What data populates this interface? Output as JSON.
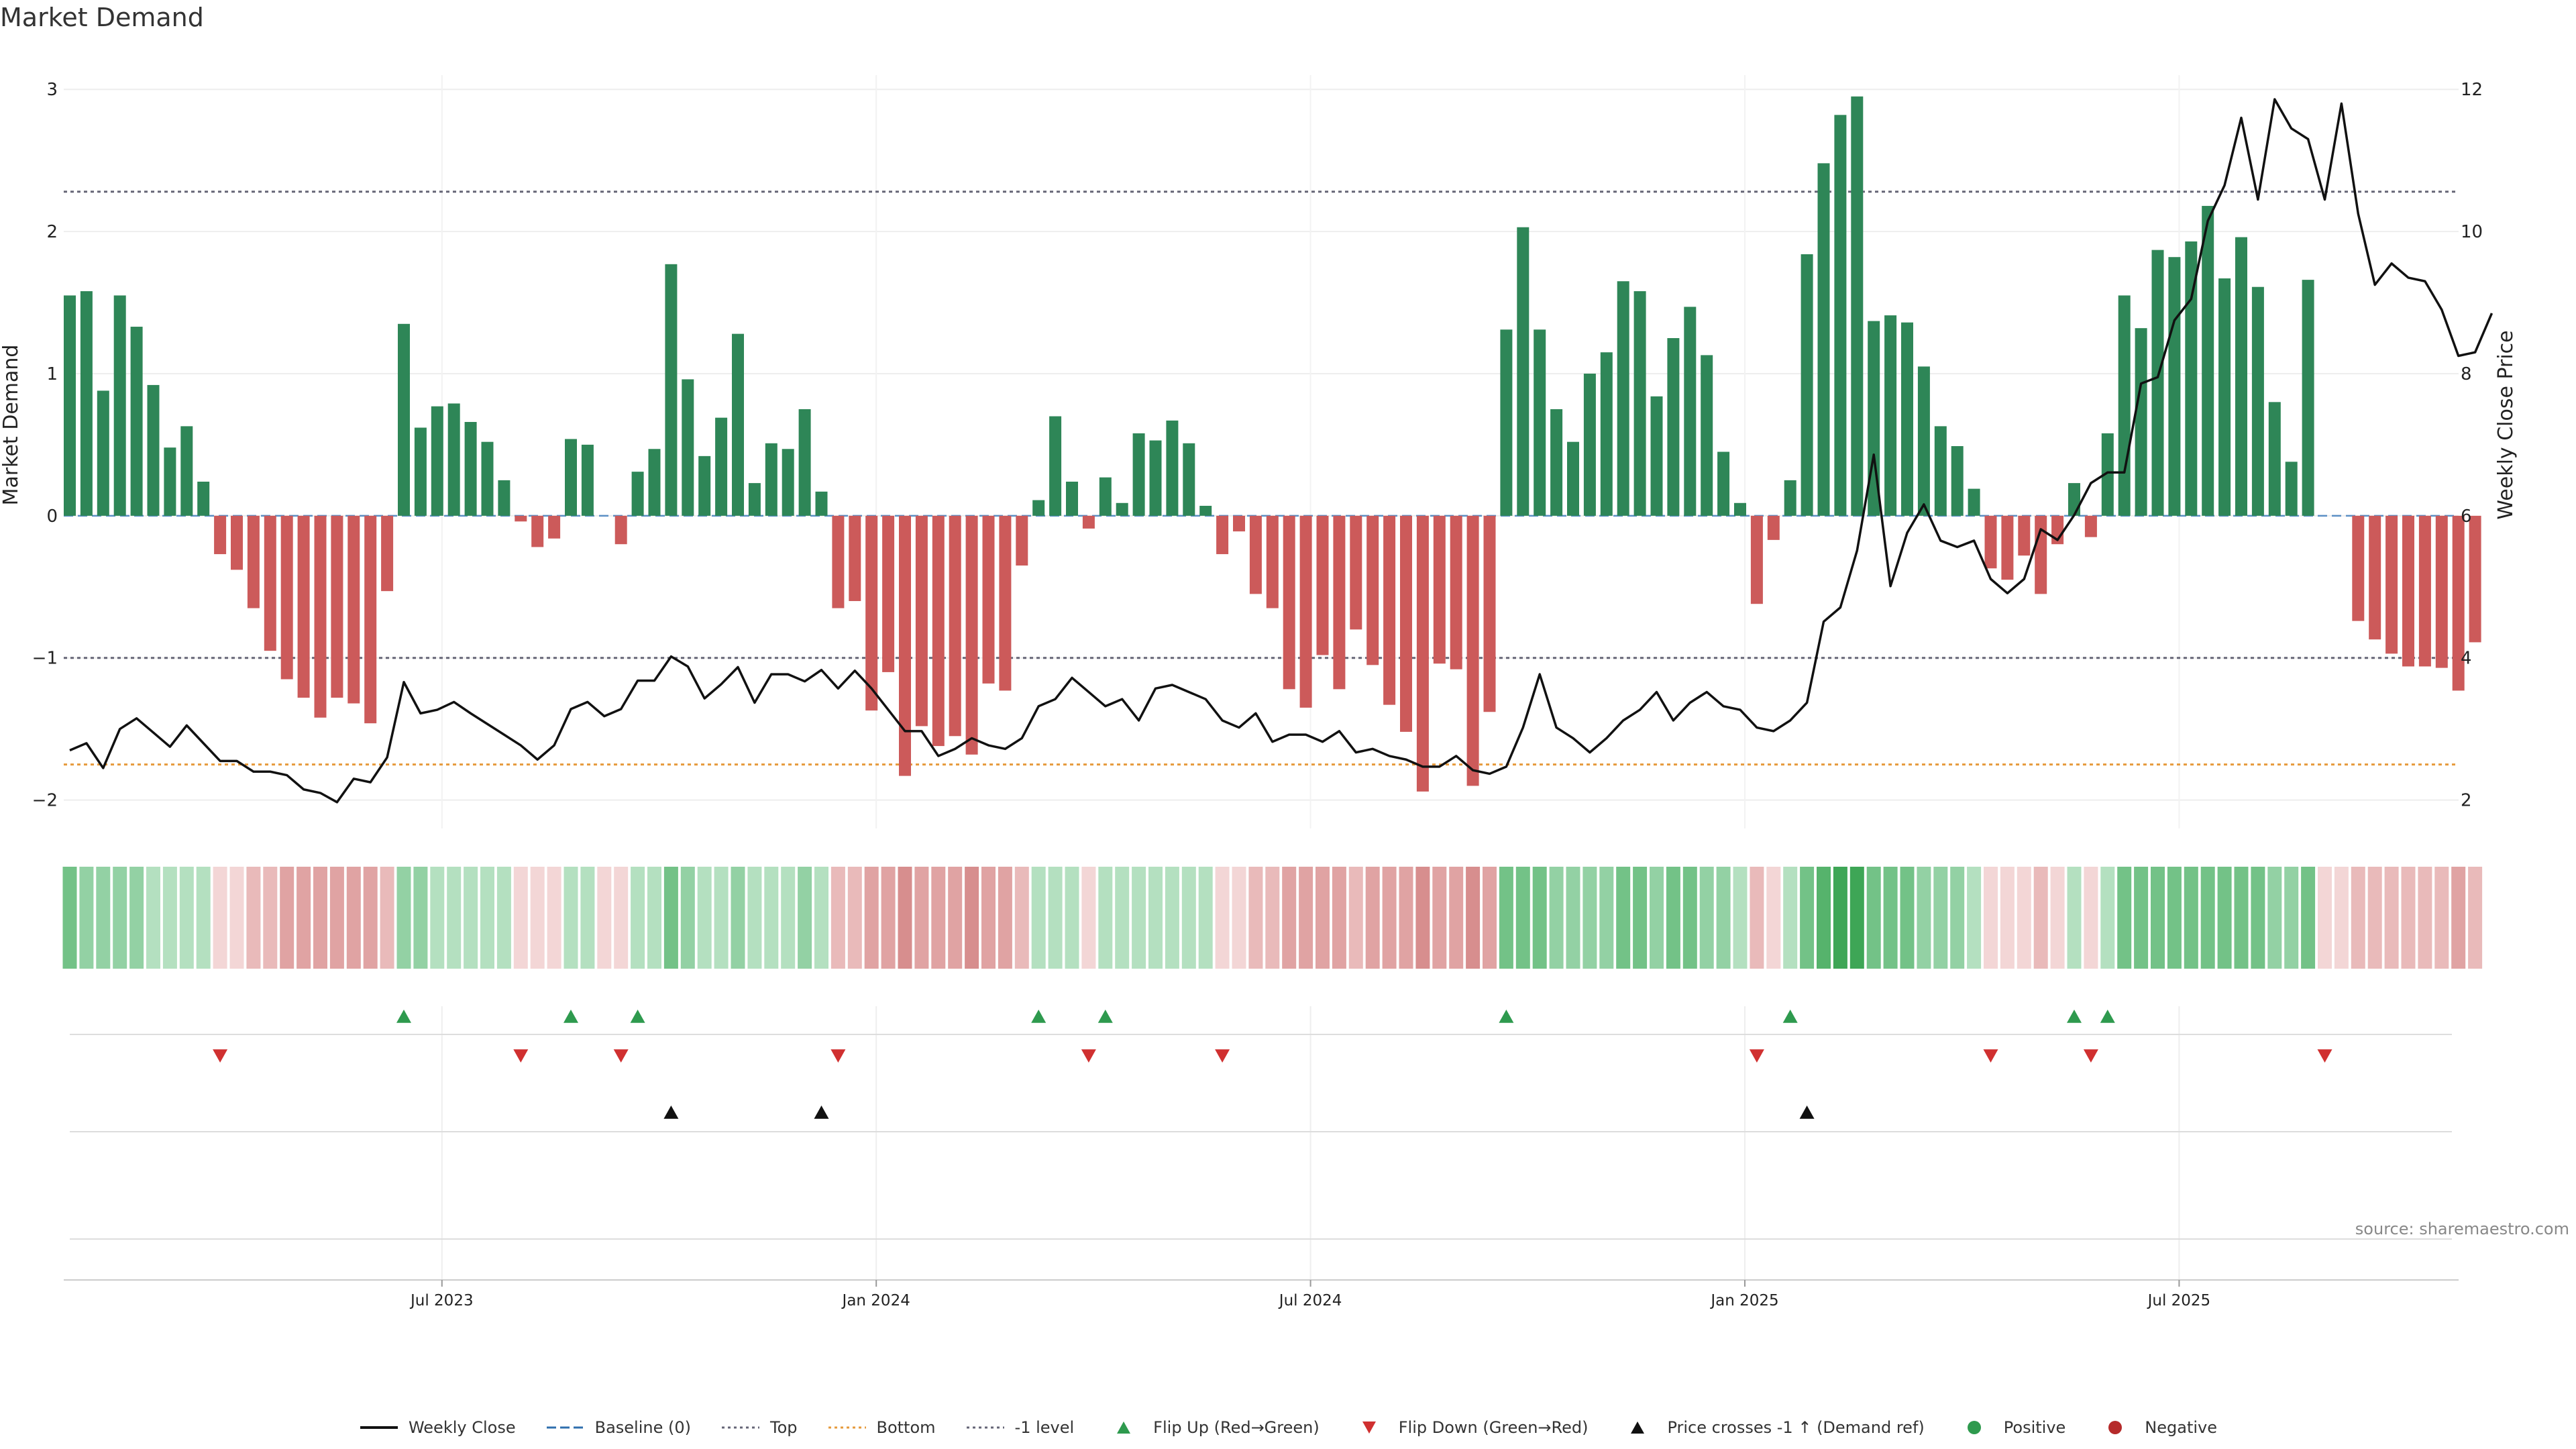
{
  "chart_data": {
    "type": "bar",
    "title": "Market Demand",
    "ylabel": "Market Demand",
    "y2label": "Weekly Close Price",
    "ylim": [
      -2.2,
      3.1
    ],
    "y2lim": [
      1.6,
      12.2
    ],
    "yticks": [
      "3",
      "2",
      "1",
      "0",
      "−1",
      "−2"
    ],
    "y2ticks": [
      "12",
      "10",
      "8",
      "6",
      "4",
      "2"
    ],
    "levels": {
      "top": 2.28,
      "minus_one": -1,
      "bottom": -1.75
    },
    "xtick_labels": [
      "Jul 2023",
      "Jan 2024",
      "Jul 2024",
      "Jan 2025",
      "Jul 2025"
    ],
    "xtick_weeks": [
      22,
      48,
      74,
      100,
      126
    ],
    "source": "source: sharemaestro.com",
    "legend": [
      {
        "label": "Weekly Close",
        "kind": "line",
        "color": "#111111"
      },
      {
        "label": "Baseline (0)",
        "kind": "dash",
        "color": "#2f6fae"
      },
      {
        "label": "Top",
        "kind": "dot",
        "color": "#666677"
      },
      {
        "label": "Bottom",
        "kind": "dot",
        "color": "#e69a3c"
      },
      {
        "label": "-1 level",
        "kind": "dot",
        "color": "#666677"
      },
      {
        "label": "Flip Up (Red→Green)",
        "kind": "tri-up",
        "color": "#2e9a4e"
      },
      {
        "label": "Flip Down (Green→Red)",
        "kind": "tri-down",
        "color": "#d03030"
      },
      {
        "label": "Price crosses -1 ↑ (Demand ref)",
        "kind": "tri-up",
        "color": "#111111"
      },
      {
        "label": "Positive",
        "kind": "dot-circle",
        "color": "#2e9a4e"
      },
      {
        "label": "Negative",
        "kind": "dot-circle",
        "color": "#b52a2a"
      }
    ],
    "demand": [
      1.55,
      1.58,
      0.88,
      1.55,
      1.33,
      0.92,
      0.48,
      0.63,
      0.24,
      -0.27,
      -0.38,
      -0.65,
      -0.95,
      -1.15,
      -1.28,
      -1.42,
      -1.28,
      -1.32,
      -1.46,
      -0.53,
      1.35,
      0.62,
      0.77,
      0.79,
      0.66,
      0.52,
      0.25,
      -0.04,
      -0.22,
      -0.16,
      0.54,
      0.5,
      0.0,
      -0.2,
      0.31,
      0.47,
      1.77,
      0.96,
      0.42,
      0.69,
      1.28,
      0.23,
      0.51,
      0.47,
      0.75,
      0.17,
      -0.65,
      -0.6,
      -1.37,
      -1.1,
      -1.83,
      -1.48,
      -1.62,
      -1.55,
      -1.68,
      -1.18,
      -1.23,
      -0.35,
      0.11,
      0.7,
      0.24,
      -0.09,
      0.27,
      0.09,
      0.58,
      0.53,
      0.67,
      0.51,
      0.07,
      -0.27,
      -0.11,
      -0.55,
      -0.65,
      -1.22,
      -1.35,
      -0.98,
      -1.22,
      -0.8,
      -1.05,
      -1.33,
      -1.52,
      -1.94,
      -1.04,
      -1.08,
      -1.9,
      -1.38,
      1.31,
      2.03,
      1.31,
      0.75,
      0.52,
      1.0,
      1.15,
      1.65,
      1.58,
      0.84,
      1.25,
      1.47,
      1.13,
      0.45,
      0.09,
      -0.62,
      -0.17,
      0.25,
      1.84,
      2.48,
      2.82,
      2.95,
      1.37,
      1.41,
      1.36,
      1.05,
      0.63,
      0.49,
      0.19,
      -0.37,
      -0.45,
      -0.28,
      -0.55,
      -0.2,
      0.23,
      -0.15,
      0.58,
      1.55,
      1.32,
      1.87,
      1.82,
      1.93,
      2.18,
      1.67,
      1.96,
      1.61,
      0.8,
      0.38,
      1.66,
      0.0,
      0.0,
      -0.74,
      -0.87,
      -0.97,
      -1.06,
      -1.06,
      -1.07,
      -1.23,
      -0.89
    ],
    "close": [
      2.7,
      2.8,
      2.45,
      3.0,
      3.15,
      2.95,
      2.75,
      3.05,
      2.8,
      2.55,
      2.55,
      2.4,
      2.4,
      2.35,
      2.15,
      2.1,
      1.97,
      2.3,
      2.25,
      2.6,
      3.66,
      3.22,
      3.27,
      3.38,
      3.22,
      3.07,
      2.92,
      2.77,
      2.57,
      2.77,
      3.28,
      3.38,
      3.18,
      3.28,
      3.68,
      3.68,
      4.02,
      3.88,
      3.43,
      3.63,
      3.87,
      3.37,
      3.77,
      3.77,
      3.67,
      3.83,
      3.57,
      3.82,
      3.57,
      3.27,
      2.97,
      2.97,
      2.62,
      2.72,
      2.87,
      2.77,
      2.72,
      2.87,
      3.32,
      3.42,
      3.72,
      3.52,
      3.32,
      3.42,
      3.12,
      3.57,
      3.62,
      3.52,
      3.42,
      3.12,
      3.02,
      3.22,
      2.82,
      2.92,
      2.92,
      2.82,
      2.97,
      2.67,
      2.72,
      2.62,
      2.57,
      2.47,
      2.47,
      2.62,
      2.42,
      2.37,
      2.47,
      3.02,
      3.77,
      3.02,
      2.87,
      2.67,
      2.87,
      3.12,
      3.27,
      3.52,
      3.12,
      3.37,
      3.52,
      3.32,
      3.27,
      3.02,
      2.97,
      3.12,
      3.37,
      4.51,
      4.71,
      5.51,
      6.86,
      5.01,
      5.76,
      6.16,
      5.65,
      5.56,
      5.65,
      5.11,
      4.91,
      5.11,
      5.81,
      5.66,
      6.01,
      6.46,
      6.61,
      6.61,
      7.86,
      7.95,
      8.75,
      9.05,
      10.15,
      10.65,
      11.6,
      10.45,
      11.86,
      11.45,
      11.3,
      10.45,
      11.8,
      10.25,
      9.25,
      9.55,
      9.35,
      9.3,
      8.9,
      8.25,
      8.3,
      8.85
    ],
    "heat_tints": [
      4,
      3,
      3,
      3,
      3,
      2,
      2,
      2,
      2,
      1,
      1,
      2,
      2,
      3,
      3,
      3,
      3,
      3,
      3,
      2,
      3,
      3,
      2,
      2,
      2,
      2,
      2,
      1,
      1,
      1,
      2,
      2,
      1,
      1,
      2,
      2,
      4,
      3,
      2,
      2,
      3,
      2,
      2,
      2,
      3,
      2,
      2,
      2,
      3,
      3,
      4,
      3,
      3,
      3,
      4,
      3,
      3,
      2,
      2,
      2,
      2,
      1,
      2,
      2,
      2,
      2,
      2,
      2,
      2,
      1,
      1,
      2,
      2,
      3,
      3,
      3,
      3,
      2,
      3,
      3,
      3,
      4,
      3,
      3,
      4,
      3,
      4,
      4,
      4,
      3,
      3,
      3,
      3,
      4,
      4,
      3,
      4,
      4,
      3,
      3,
      2,
      2,
      1,
      2,
      4,
      5,
      6,
      6,
      4,
      4,
      4,
      3,
      3,
      3,
      2,
      1,
      1,
      1,
      2,
      1,
      2,
      1,
      2,
      4,
      4,
      4,
      4,
      4,
      4,
      4,
      4,
      4,
      3,
      3,
      4,
      1,
      1,
      2,
      2,
      2,
      2,
      2,
      2,
      3,
      2
    ],
    "flip_up_weeks": [
      20,
      30,
      34,
      58,
      62,
      86,
      103,
      120,
      122
    ],
    "flip_down_weeks": [
      9,
      27,
      33,
      46,
      61,
      69,
      101,
      115,
      121,
      135
    ],
    "cross_weeks": [
      36,
      45,
      104
    ]
  }
}
